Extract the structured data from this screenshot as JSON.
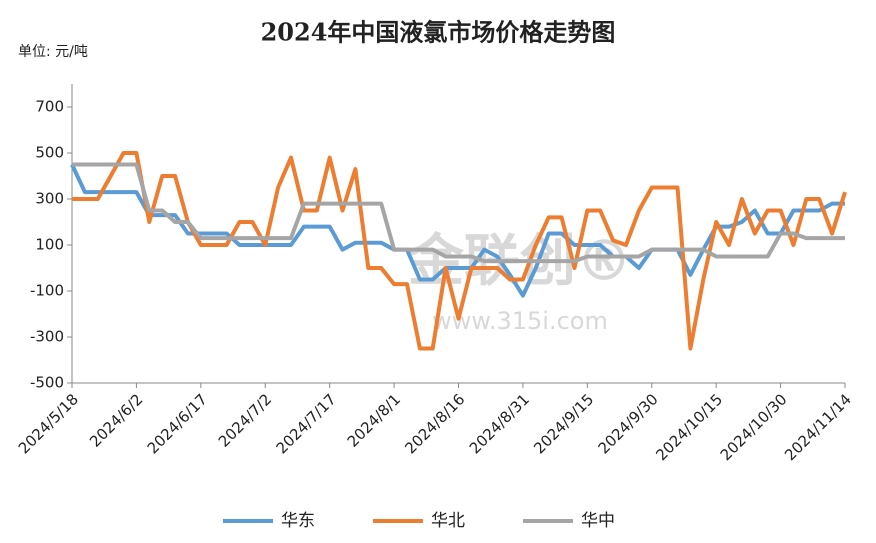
{
  "chart_data": {
    "type": "line",
    "title": "2024年中国液氯市场价格走势图",
    "unit": "单位: 元/吨",
    "watermark": [
      "金联创®",
      "www.315i.com"
    ],
    "x": [
      "2024/5/18",
      "2024/5/21",
      "2024/5/24",
      "2024/5/27",
      "2024/5/30",
      "2024/6/2",
      "2024/6/5",
      "2024/6/8",
      "2024/6/11",
      "2024/6/14",
      "2024/6/17",
      "2024/6/20",
      "2024/6/23",
      "2024/6/26",
      "2024/6/29",
      "2024/7/2",
      "2024/7/5",
      "2024/7/8",
      "2024/7/11",
      "2024/7/14",
      "2024/7/17",
      "2024/7/20",
      "2024/7/23",
      "2024/7/26",
      "2024/7/29",
      "2024/8/1",
      "2024/8/4",
      "2024/8/7",
      "2024/8/10",
      "2024/8/13",
      "2024/8/16",
      "2024/8/19",
      "2024/8/22",
      "2024/8/25",
      "2024/8/28",
      "2024/8/31",
      "2024/9/3",
      "2024/9/6",
      "2024/9/9",
      "2024/9/12",
      "2024/9/15",
      "2024/9/18",
      "2024/9/21",
      "2024/9/24",
      "2024/9/27",
      "2024/9/30",
      "2024/10/3",
      "2024/10/6",
      "2024/10/9",
      "2024/10/12",
      "2024/10/15",
      "2024/10/18",
      "2024/10/21",
      "2024/10/24",
      "2024/10/27",
      "2024/10/30",
      "2024/11/2",
      "2024/11/5",
      "2024/11/8",
      "2024/11/11",
      "2024/11/14"
    ],
    "xlim": [
      "2024/5/18",
      "2024/11/14"
    ],
    "xticks": [
      "2024/5/18",
      "2024/6/2",
      "2024/6/17",
      "2024/7/2",
      "2024/7/17",
      "2024/8/1",
      "2024/8/16",
      "2024/8/31",
      "2024/9/15",
      "2024/9/30",
      "2024/10/15",
      "2024/10/30",
      "2024/11/14"
    ],
    "ylim": [
      -500,
      800
    ],
    "yticks": [
      -500,
      -300,
      -100,
      100,
      300,
      500,
      700
    ],
    "legend": "bottom",
    "series": [
      {
        "name": "华东",
        "color": "#5b9bd5",
        "values": [
          450,
          330,
          330,
          330,
          330,
          330,
          230,
          230,
          230,
          150,
          150,
          150,
          150,
          100,
          100,
          100,
          100,
          100,
          180,
          180,
          180,
          80,
          110,
          110,
          110,
          80,
          80,
          -50,
          -50,
          0,
          0,
          0,
          80,
          50,
          -30,
          -120,
          0,
          150,
          150,
          100,
          100,
          100,
          50,
          50,
          0,
          80,
          80,
          80,
          -30,
          80,
          180,
          180,
          200,
          250,
          150,
          150,
          250,
          250,
          250,
          280,
          280
        ]
      },
      {
        "name": "华北",
        "color": "#ed7d31",
        "values": [
          300,
          300,
          300,
          400,
          500,
          500,
          200,
          400,
          400,
          200,
          100,
          100,
          100,
          200,
          200,
          100,
          350,
          480,
          250,
          250,
          480,
          250,
          430,
          0,
          0,
          -70,
          -70,
          -350,
          -350,
          0,
          -220,
          0,
          0,
          0,
          -50,
          -50,
          100,
          220,
          220,
          0,
          250,
          250,
          120,
          100,
          250,
          350,
          350,
          350,
          -350,
          -50,
          200,
          100,
          300,
          150,
          250,
          250,
          100,
          300,
          300,
          150,
          330
        ]
      },
      {
        "name": "华中",
        "color": "#a5a5a5",
        "values": [
          450,
          450,
          450,
          450,
          450,
          450,
          250,
          250,
          200,
          200,
          130,
          130,
          130,
          130,
          130,
          130,
          130,
          130,
          280,
          280,
          280,
          280,
          280,
          280,
          280,
          80,
          80,
          80,
          80,
          50,
          50,
          50,
          30,
          30,
          30,
          30,
          30,
          30,
          30,
          30,
          50,
          50,
          50,
          50,
          50,
          80,
          80,
          80,
          80,
          80,
          50,
          50,
          50,
          50,
          50,
          150,
          150,
          130,
          130,
          130,
          130
        ]
      }
    ]
  }
}
